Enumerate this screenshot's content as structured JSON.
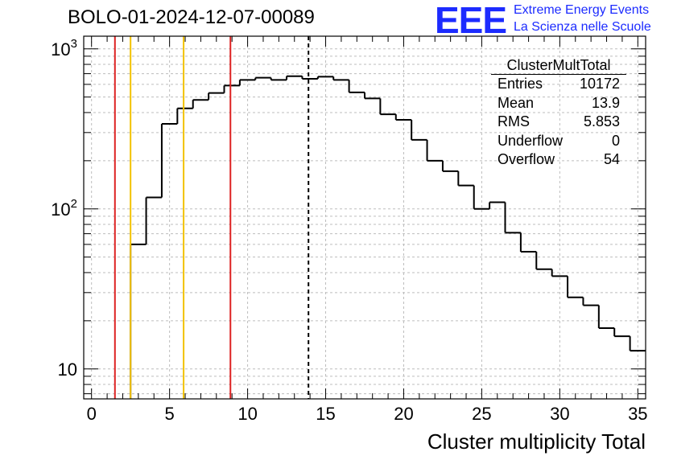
{
  "title": "BOLO-01-2024-12-07-00089",
  "logo": {
    "text": "EEE",
    "line1": "Extreme Energy Events",
    "line2": "La Scienza nelle Scuole"
  },
  "stats": {
    "title": "ClusterMultTotal",
    "rows": [
      {
        "label": "Entries",
        "value": "10172"
      },
      {
        "label": "Mean",
        "value": "13.9"
      },
      {
        "label": "RMS",
        "value": "5.853"
      },
      {
        "label": "Underflow",
        "value": "0"
      },
      {
        "label": "Overflow",
        "value": "54"
      }
    ]
  },
  "chart_data": {
    "type": "histogram",
    "xlabel": "Cluster multiplicity Total",
    "xlim": [
      -0.5,
      35.5
    ],
    "ylim": [
      6.5,
      1200
    ],
    "yscale": "log",
    "grid": true,
    "bin_width": 1,
    "bins": [
      {
        "x": 0,
        "y": 0
      },
      {
        "x": 1,
        "y": 0
      },
      {
        "x": 2,
        "y": 0
      },
      {
        "x": 3,
        "y": 60
      },
      {
        "x": 4,
        "y": 118
      },
      {
        "x": 5,
        "y": 340
      },
      {
        "x": 6,
        "y": 425
      },
      {
        "x": 7,
        "y": 480
      },
      {
        "x": 8,
        "y": 530
      },
      {
        "x": 9,
        "y": 590
      },
      {
        "x": 10,
        "y": 640
      },
      {
        "x": 11,
        "y": 660
      },
      {
        "x": 12,
        "y": 640
      },
      {
        "x": 13,
        "y": 675
      },
      {
        "x": 14,
        "y": 650
      },
      {
        "x": 15,
        "y": 670
      },
      {
        "x": 16,
        "y": 640
      },
      {
        "x": 17,
        "y": 535
      },
      {
        "x": 18,
        "y": 490
      },
      {
        "x": 19,
        "y": 390
      },
      {
        "x": 20,
        "y": 360
      },
      {
        "x": 21,
        "y": 270
      },
      {
        "x": 22,
        "y": 200
      },
      {
        "x": 23,
        "y": 172
      },
      {
        "x": 24,
        "y": 140
      },
      {
        "x": 25,
        "y": 100
      },
      {
        "x": 26,
        "y": 110
      },
      {
        "x": 27,
        "y": 71
      },
      {
        "x": 28,
        "y": 54
      },
      {
        "x": 29,
        "y": 42
      },
      {
        "x": 30,
        "y": 38
      },
      {
        "x": 31,
        "y": 28
      },
      {
        "x": 32,
        "y": 25
      },
      {
        "x": 33,
        "y": 18
      },
      {
        "x": 34,
        "y": 16
      },
      {
        "x": 35,
        "y": 13
      }
    ],
    "vertical_lines": [
      {
        "x": 1.5,
        "color": "#dd2222",
        "style": "solid"
      },
      {
        "x": 2.5,
        "color": "#f2c200",
        "style": "solid"
      },
      {
        "x": 5.9,
        "color": "#f2c200",
        "style": "solid"
      },
      {
        "x": 8.9,
        "color": "#dd2222",
        "style": "solid"
      },
      {
        "x": 13.9,
        "color": "#000000",
        "style": "dashed"
      }
    ],
    "x_major_ticks": [
      0,
      5,
      10,
      15,
      20,
      25,
      30,
      35
    ],
    "x_tick_labels": [
      "0",
      "5",
      "10",
      "15",
      "20",
      "25",
      "30",
      "35"
    ],
    "y_major_ticks": [
      {
        "value": 10,
        "base": "10",
        "exp": ""
      },
      {
        "value": 100,
        "base": "10",
        "exp": "2"
      },
      {
        "value": 1000,
        "base": "10",
        "exp": "3"
      }
    ]
  }
}
